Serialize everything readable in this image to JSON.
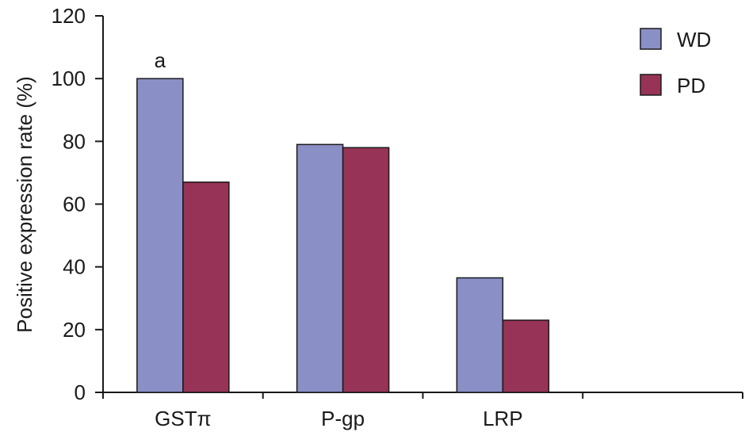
{
  "chart_data": {
    "type": "bar",
    "categories": [
      "GSTπ",
      "P-gp",
      "LRP",
      ""
    ],
    "series": [
      {
        "name": "WD",
        "values": [
          100,
          79,
          36.5,
          null
        ],
        "color": "#8a8fc6"
      },
      {
        "name": "PD",
        "values": [
          67,
          78,
          23,
          null
        ],
        "color": "#973356"
      }
    ],
    "ylabel": "Positive expression rate (%)",
    "xlabel": "",
    "ylim": [
      0,
      120
    ],
    "yticks": [
      0,
      20,
      40,
      60,
      80,
      100,
      120
    ],
    "annotations": [
      {
        "category": "GSTπ",
        "series": "WD",
        "text": "a"
      }
    ],
    "legend_position": "top-right",
    "grid": false
  }
}
